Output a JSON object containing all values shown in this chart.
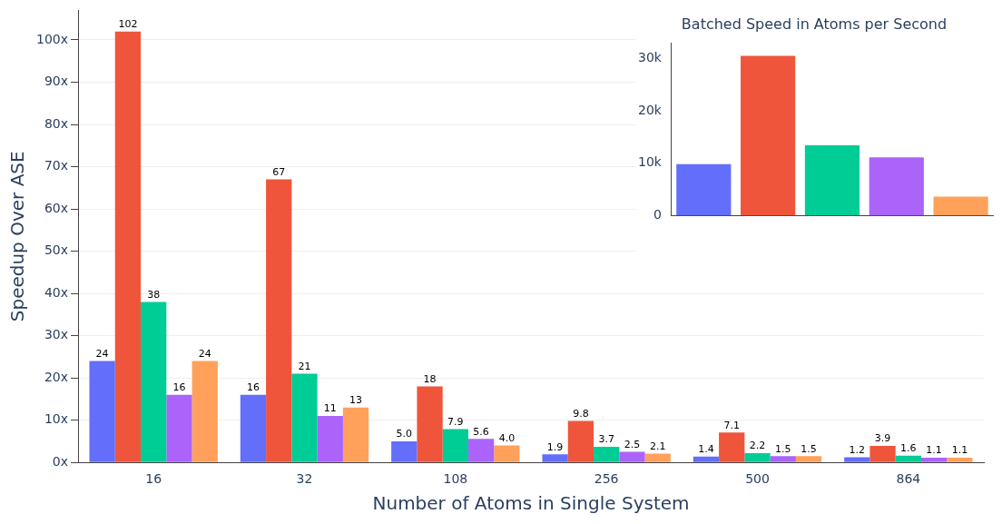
{
  "chart_data": [
    {
      "type": "bar",
      "xlabel": "Number of Atoms in Single System",
      "ylabel": "Speedup Over ASE",
      "categories": [
        "16",
        "32",
        "108",
        "256",
        "500",
        "864"
      ],
      "series": [
        {
          "color": "#636efa",
          "values": [
            24,
            16,
            5.0,
            1.9,
            1.4,
            1.2
          ],
          "value_labels": [
            "24",
            "16",
            "5.0",
            "1.9",
            "1.4",
            "1.2"
          ]
        },
        {
          "color": "#ef553b",
          "values": [
            102,
            67,
            18,
            9.8,
            7.1,
            3.9
          ],
          "value_labels": [
            "102",
            "67",
            "18",
            "9.8",
            "7.1",
            "3.9"
          ]
        },
        {
          "color": "#00cc96",
          "values": [
            38,
            21,
            7.9,
            3.7,
            2.2,
            1.6
          ],
          "value_labels": [
            "38",
            "21",
            "7.9",
            "3.7",
            "2.2",
            "1.6"
          ]
        },
        {
          "color": "#ab63fa",
          "values": [
            16,
            11,
            5.6,
            2.5,
            1.5,
            1.1
          ],
          "value_labels": [
            "16",
            "11",
            "5.6",
            "2.5",
            "1.5",
            "1.1"
          ]
        },
        {
          "color": "#ffa15a",
          "values": [
            24,
            13,
            4.0,
            2.1,
            1.5,
            1.1
          ],
          "value_labels": [
            "24",
            "13",
            "4.0",
            "2.1",
            "1.5",
            "1.1"
          ]
        }
      ],
      "ylim": [
        0,
        107
      ],
      "yticks": [
        {
          "value": 0,
          "label": "0x"
        },
        {
          "value": 10,
          "label": "10x"
        },
        {
          "value": 20,
          "label": "20x"
        },
        {
          "value": 30,
          "label": "30x"
        },
        {
          "value": 40,
          "label": "40x"
        },
        {
          "value": 50,
          "label": "50x"
        },
        {
          "value": 60,
          "label": "60x"
        },
        {
          "value": 70,
          "label": "70x"
        },
        {
          "value": 80,
          "label": "80x"
        },
        {
          "value": 90,
          "label": "90x"
        },
        {
          "value": 100,
          "label": "100x"
        }
      ],
      "grid": "y",
      "legend": false
    },
    {
      "type": "bar",
      "title": "Batched Speed in Atoms per Second",
      "categories": [
        null,
        null,
        null,
        null,
        null
      ],
      "values": [
        9800,
        30500,
        13400,
        11100,
        3600
      ],
      "colors": [
        "#636efa",
        "#ef553b",
        "#00cc96",
        "#ab63fa",
        "#ffa15a"
      ],
      "ylim": [
        0,
        33000
      ],
      "yticks": [
        0,
        {
          "value": 10000,
          "label": "10k"
        },
        {
          "value": 20000,
          "label": "20k"
        },
        {
          "value": 30000,
          "label": "30k"
        }
      ],
      "grid": false,
      "legend": false
    }
  ]
}
